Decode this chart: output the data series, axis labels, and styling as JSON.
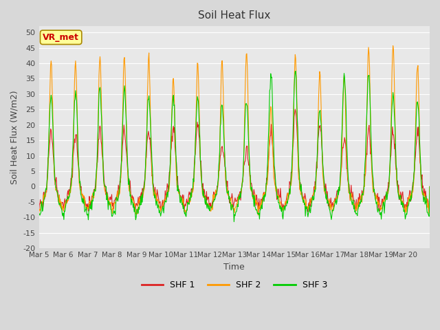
{
  "title": "Soil Heat Flux",
  "xlabel": "Time",
  "ylabel": "Soil Heat Flux (W/m2)",
  "ylim": [
    -20,
    52
  ],
  "yticks": [
    -20,
    -15,
    -10,
    -5,
    0,
    5,
    10,
    15,
    20,
    25,
    30,
    35,
    40,
    45,
    50
  ],
  "xtick_positions": [
    0,
    1,
    2,
    3,
    4,
    5,
    6,
    7,
    8,
    9,
    10,
    11,
    12,
    13,
    14,
    15
  ],
  "xticklabels": [
    "Mar 5",
    "Mar 6",
    "Mar 7",
    "Mar 8",
    "Mar 9",
    "Mar 10",
    "Mar 11",
    "Mar 12",
    "Mar 13",
    "Mar 14",
    "Mar 15",
    "Mar 16",
    "Mar 17",
    "Mar 18",
    "Mar 19",
    "Mar 20"
  ],
  "series_names": [
    "SHF 1",
    "SHF 2",
    "SHF 3"
  ],
  "series_colors": [
    "#dd2222",
    "#ff9900",
    "#00cc00"
  ],
  "annotation_text": "VR_met",
  "annotation_color": "#cc0000",
  "annotation_bg": "#ffff99",
  "annotation_border": "#aa8800",
  "n_days": 16,
  "points_per_day": 48,
  "shf2_peaks": [
    41,
    41,
    42,
    42,
    42,
    35,
    41,
    41,
    44,
    25,
    42,
    37,
    36,
    45,
    46,
    40
  ],
  "shf3_peaks": [
    30,
    31,
    32,
    32,
    30,
    30,
    29,
    26,
    27,
    37,
    38,
    25,
    37,
    37,
    29,
    28
  ]
}
